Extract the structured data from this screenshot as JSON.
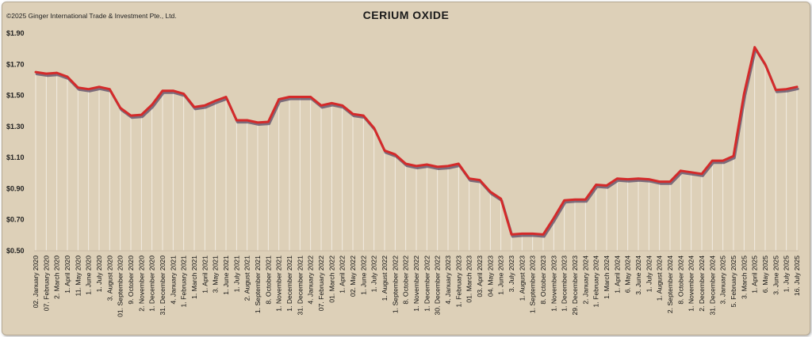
{
  "copyright": "©2025 Ginger International Trade & Investment Pte., Ltd.",
  "chart_data": {
    "type": "line",
    "title": "CERIUM OXIDE",
    "xlabel": "",
    "ylabel": "",
    "ylim": [
      0.5,
      1.9
    ],
    "yticks": [
      "$0.50",
      "$0.70",
      "$0.90",
      "$1.10",
      "$1.30",
      "$1.50",
      "$1.70",
      "$1.90"
    ],
    "grid": "vertical drop lines from each point",
    "line_color": "#d42a2a",
    "shadow_color": "#5a4a66",
    "background_color": "#ddd0b8",
    "categories": [
      "02. January 2020",
      "07. February 2020",
      "2. March 2020",
      "1. April 2020",
      "11. May 2020",
      "1. June 2020",
      "1. July 2020",
      "3. August 2020",
      "01. September 2020",
      "9. October 2020",
      "2. November 2020",
      "1. December 2020",
      "31. December 2020",
      "4. January 2021",
      "1. February 2021",
      "1. March 2021",
      "1. April 2021",
      "3. May 2021",
      "1. June 2021",
      "1. July 2021",
      "2. August 2021",
      "1. September 2021",
      "8. October 2021",
      "1. November 2021",
      "1. December 2021",
      "31. December 2021",
      "4. January 2022",
      "07. February 2022",
      "01. March 2022",
      "1. April 2022",
      "02. May 2022",
      "1. June 2022",
      "1. July 2022",
      "1. August 2022",
      "1. September 2022",
      "8. October 2022",
      "1. November 2022",
      "1. December 2022",
      "30. December 2022",
      "4. January 2023",
      "1. February 2023",
      "01. March 2023",
      "03. April 2023",
      "04. May 2023",
      "1. June 2023",
      "3. July 2023",
      "1. August 2023",
      "1. September 2023",
      "8. October 2023",
      "1. November 2023",
      "1. December 2023",
      "29. December 2023",
      "2. January 2024",
      "1. February 2024",
      "1. March 2024",
      "1. April 2024",
      "6. May 2024",
      "3. June 2024",
      "1. July 2024",
      "1. August 2024",
      "2. September 2024",
      "8. October 2024",
      "1. November 2024",
      "2. December 2024",
      "31. December 2024",
      "3. January 2025",
      "5. February 2025",
      "3. March 2025",
      "1. April 2025",
      "6. May 2025",
      "3. June 2025",
      "1. July 2025",
      "16. July 2025"
    ],
    "series": [
      {
        "values": [
          1.65,
          1.64,
          1.645,
          1.62,
          1.55,
          1.54,
          1.555,
          1.54,
          1.42,
          1.37,
          1.375,
          1.44,
          1.53,
          1.53,
          1.51,
          1.425,
          1.435,
          1.465,
          1.49,
          1.34,
          1.34,
          1.325,
          1.33,
          1.475,
          1.49,
          1.49,
          1.49,
          1.435,
          1.45,
          1.435,
          1.38,
          1.37,
          1.29,
          1.145,
          1.12,
          1.06,
          1.045,
          1.055,
          1.04,
          1.045,
          1.06,
          0.965,
          0.955,
          0.88,
          0.835,
          0.605,
          0.61,
          0.61,
          0.605,
          0.71,
          0.825,
          0.83,
          0.83,
          0.925,
          0.92,
          0.965,
          0.96,
          0.965,
          0.96,
          0.945,
          0.945,
          1.015,
          1.005,
          0.995,
          1.08,
          1.08,
          1.11,
          1.51,
          1.81,
          1.7,
          1.535,
          1.54,
          1.555
        ]
      }
    ]
  }
}
